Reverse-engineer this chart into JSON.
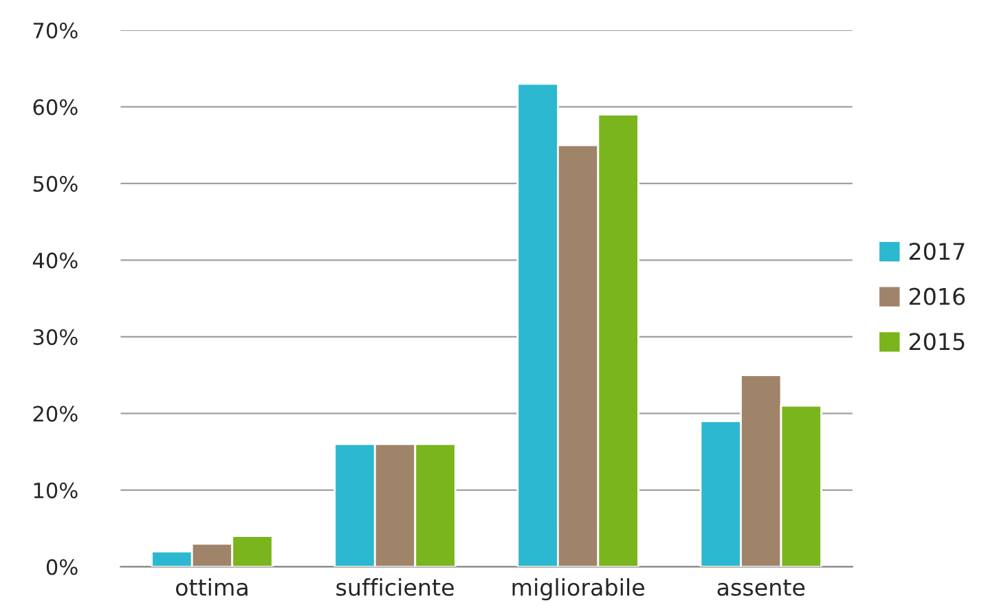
{
  "chart_data": {
    "type": "bar",
    "categories": [
      "ottima",
      "sufficiente",
      "migliorabile",
      "assente"
    ],
    "series": [
      {
        "name": "2017",
        "color": "#2cb8d0",
        "values": [
          2,
          16,
          63,
          19
        ]
      },
      {
        "name": "2016",
        "color": "#a0846a",
        "values": [
          3,
          16,
          55,
          25
        ]
      },
      {
        "name": "2015",
        "color": "#7ab51d",
        "values": [
          4,
          16,
          59,
          21
        ]
      }
    ],
    "ylim": [
      0,
      70
    ],
    "yticks": [
      {
        "value": 0,
        "label": "0%"
      },
      {
        "value": 10,
        "label": "10%"
      },
      {
        "value": 20,
        "label": "20%"
      },
      {
        "value": 30,
        "label": "30%"
      },
      {
        "value": 40,
        "label": "40%"
      },
      {
        "value": 50,
        "label": "50%"
      },
      {
        "value": 60,
        "label": "60%"
      },
      {
        "value": 70,
        "label": "70%"
      }
    ],
    "grid": "y",
    "legend": "right"
  }
}
